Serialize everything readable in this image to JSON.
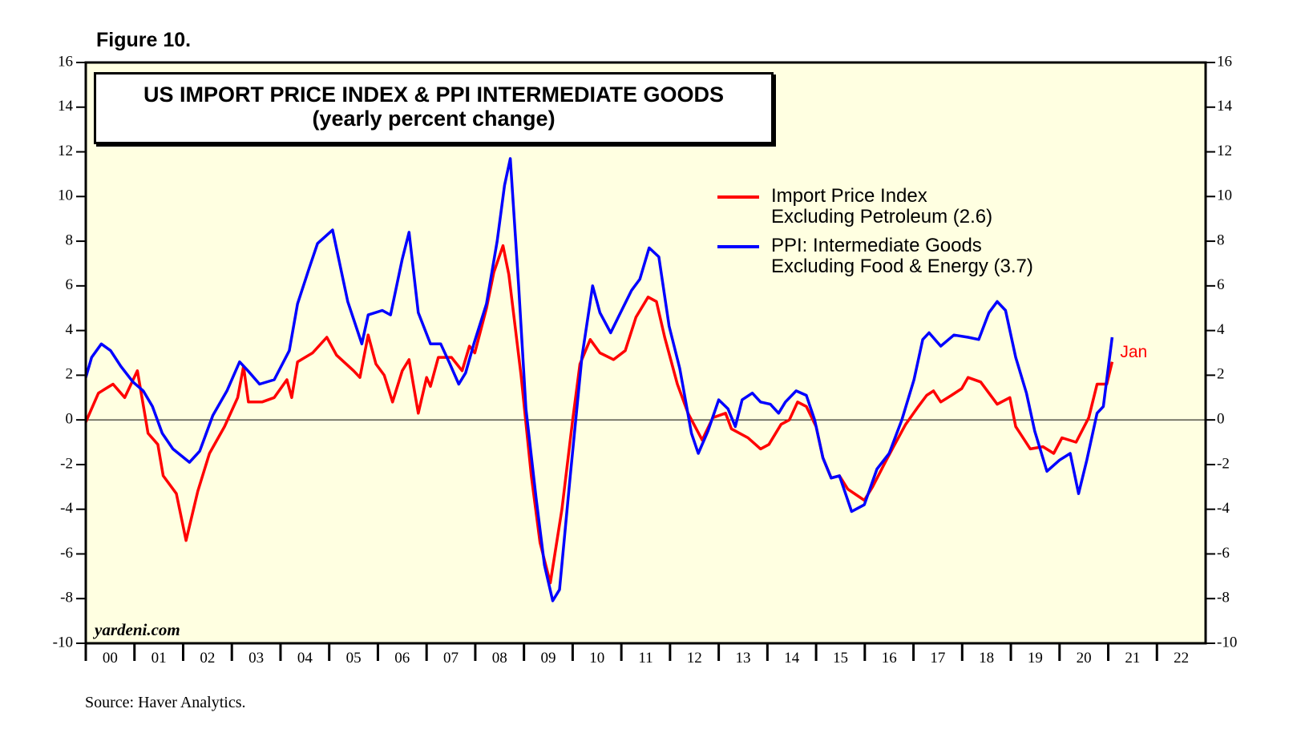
{
  "chart_data": {
    "type": "line",
    "figure_label": "Figure 10.",
    "title": "US IMPORT PRICE INDEX & PPI INTERMEDIATE GOODS",
    "subtitle": "(yearly percent change)",
    "source": "Source: Haver Analytics.",
    "watermark": "yardeni.com",
    "annotations": [
      "Jan"
    ],
    "xlim": [
      2000,
      2023
    ],
    "xticks": [
      {
        "value": 2000,
        "label": "00"
      },
      {
        "value": 2001,
        "label": "01"
      },
      {
        "value": 2002,
        "label": "02"
      },
      {
        "value": 2003,
        "label": "03"
      },
      {
        "value": 2004,
        "label": "04"
      },
      {
        "value": 2005,
        "label": "05"
      },
      {
        "value": 2006,
        "label": "06"
      },
      {
        "value": 2007,
        "label": "07"
      },
      {
        "value": 2008,
        "label": "08"
      },
      {
        "value": 2009,
        "label": "09"
      },
      {
        "value": 2010,
        "label": "10"
      },
      {
        "value": 2011,
        "label": "11"
      },
      {
        "value": 2012,
        "label": "12"
      },
      {
        "value": 2013,
        "label": "13"
      },
      {
        "value": 2014,
        "label": "14"
      },
      {
        "value": 2015,
        "label": "15"
      },
      {
        "value": 2016,
        "label": "16"
      },
      {
        "value": 2017,
        "label": "17"
      },
      {
        "value": 2018,
        "label": "18"
      },
      {
        "value": 2019,
        "label": "19"
      },
      {
        "value": 2020,
        "label": "20"
      },
      {
        "value": 2021,
        "label": "21"
      },
      {
        "value": 2022,
        "label": "22"
      }
    ],
    "ylim": [
      -10,
      16
    ],
    "yticks": [
      -10,
      -8,
      -6,
      -4,
      -2,
      0,
      2,
      4,
      6,
      8,
      10,
      12,
      14,
      16
    ],
    "series": [
      {
        "name": "Import Price Index\nExcluding Petroleum (2.6)",
        "color": "#ff0000",
        "x": [
          2000.0,
          2000.26,
          2000.56,
          2000.8,
          2001.06,
          2001.28,
          2001.48,
          2001.59,
          2001.86,
          2002.06,
          2002.3,
          2002.54,
          2002.85,
          2003.12,
          2003.24,
          2003.34,
          2003.62,
          2003.87,
          2004.13,
          2004.23,
          2004.35,
          2004.66,
          2004.95,
          2005.15,
          2005.5,
          2005.63,
          2005.8,
          2005.96,
          2006.13,
          2006.3,
          2006.5,
          2006.64,
          2006.83,
          2007.0,
          2007.08,
          2007.24,
          2007.51,
          2007.73,
          2007.88,
          2007.99,
          2008.23,
          2008.38,
          2008.57,
          2008.69,
          2008.94,
          2009.15,
          2009.33,
          2009.54,
          2009.78,
          2010.0,
          2010.15,
          2010.36,
          2010.56,
          2010.84,
          2011.08,
          2011.3,
          2011.55,
          2011.72,
          2011.89,
          2012.15,
          2012.37,
          2012.66,
          2012.88,
          2013.14,
          2013.26,
          2013.6,
          2013.86,
          2014.03,
          2014.28,
          2014.45,
          2014.62,
          2014.8,
          2015.0,
          2015.14,
          2015.31,
          2015.48,
          2015.65,
          2015.99,
          2016.16,
          2016.42,
          2016.59,
          2016.84,
          2017.1,
          2017.27,
          2017.41,
          2017.56,
          2017.78,
          2017.99,
          2018.12,
          2018.38,
          2018.55,
          2018.72,
          2018.98,
          2019.1,
          2019.4,
          2019.66,
          2019.88,
          2020.05,
          2020.34,
          2020.6,
          2020.77,
          2020.97,
          2021.08
        ],
        "values": [
          -0.1,
          1.2,
          1.6,
          1.0,
          2.2,
          -0.6,
          -1.1,
          -2.5,
          -3.3,
          -5.4,
          -3.2,
          -1.5,
          -0.3,
          1.0,
          2.4,
          0.8,
          0.8,
          1.0,
          1.8,
          1.0,
          2.6,
          3.0,
          3.7,
          2.9,
          2.2,
          1.9,
          3.8,
          2.5,
          2.0,
          0.8,
          2.2,
          2.7,
          0.3,
          1.9,
          1.5,
          2.8,
          2.8,
          2.2,
          3.3,
          3.0,
          5.0,
          6.6,
          7.8,
          6.5,
          2.0,
          -2.5,
          -5.5,
          -7.3,
          -4.0,
          0.0,
          2.5,
          3.6,
          3.0,
          2.7,
          3.1,
          4.6,
          5.5,
          5.3,
          3.7,
          1.6,
          0.3,
          -0.9,
          0.1,
          0.3,
          -0.4,
          -0.8,
          -1.3,
          -1.1,
          -0.2,
          0.0,
          0.8,
          0.6,
          -0.3,
          -1.7,
          -2.6,
          -2.5,
          -3.1,
          -3.6,
          -3.0,
          -1.9,
          -1.2,
          -0.2,
          0.6,
          1.1,
          1.3,
          0.8,
          1.1,
          1.4,
          1.9,
          1.7,
          1.2,
          0.7,
          1.0,
          -0.3,
          -1.3,
          -1.2,
          -1.5,
          -0.8,
          -1.0,
          0.1,
          1.6,
          1.6,
          2.6
        ]
      },
      {
        "name": "PPI: Intermediate Goods\nExcluding Food & Energy (3.7)",
        "color": "#0000ff",
        "x": [
          2000.0,
          2000.12,
          2000.32,
          2000.51,
          2000.72,
          2000.97,
          2001.18,
          2001.37,
          2001.57,
          2001.79,
          2002.13,
          2002.34,
          2002.61,
          2002.9,
          2003.16,
          2003.33,
          2003.57,
          2003.87,
          2004.18,
          2004.35,
          2004.59,
          2004.76,
          2005.07,
          2005.38,
          2005.67,
          2005.8,
          2006.09,
          2006.26,
          2006.5,
          2006.64,
          2006.83,
          2007.08,
          2007.29,
          2007.46,
          2007.66,
          2007.8,
          2007.97,
          2008.23,
          2008.45,
          2008.6,
          2008.72,
          2008.89,
          2009.04,
          2009.25,
          2009.42,
          2009.59,
          2009.73,
          2009.95,
          2010.19,
          2010.41,
          2010.56,
          2010.78,
          2010.96,
          2011.21,
          2011.38,
          2011.57,
          2011.77,
          2011.98,
          2012.2,
          2012.44,
          2012.58,
          2012.78,
          2013.0,
          2013.19,
          2013.34,
          2013.48,
          2013.69,
          2013.86,
          2014.06,
          2014.23,
          2014.37,
          2014.59,
          2014.8,
          2014.97,
          2015.14,
          2015.31,
          2015.48,
          2015.73,
          2015.99,
          2016.25,
          2016.5,
          2016.76,
          2017.01,
          2017.19,
          2017.32,
          2017.56,
          2017.83,
          2018.12,
          2018.34,
          2018.55,
          2018.72,
          2018.89,
          2019.1,
          2019.32,
          2019.49,
          2019.74,
          2020.0,
          2020.22,
          2020.39,
          2020.56,
          2020.77,
          2020.9,
          2021.08
        ],
        "values": [
          1.9,
          2.8,
          3.4,
          3.1,
          2.4,
          1.7,
          1.3,
          0.6,
          -0.6,
          -1.3,
          -1.9,
          -1.4,
          0.2,
          1.3,
          2.6,
          2.2,
          1.6,
          1.8,
          3.1,
          5.2,
          6.8,
          7.9,
          8.5,
          5.3,
          3.4,
          4.7,
          4.9,
          4.7,
          7.2,
          8.4,
          4.8,
          3.4,
          3.4,
          2.6,
          1.6,
          2.1,
          3.4,
          5.2,
          8.0,
          10.5,
          11.7,
          6.0,
          0.5,
          -3.5,
          -6.5,
          -8.1,
          -7.6,
          -2.5,
          2.8,
          6.0,
          4.8,
          3.9,
          4.7,
          5.8,
          6.3,
          7.7,
          7.3,
          4.2,
          2.3,
          -0.6,
          -1.5,
          -0.5,
          0.9,
          0.5,
          -0.3,
          0.9,
          1.2,
          0.8,
          0.7,
          0.3,
          0.8,
          1.3,
          1.1,
          0.0,
          -1.7,
          -2.6,
          -2.5,
          -4.1,
          -3.8,
          -2.2,
          -1.5,
          0.0,
          1.8,
          3.6,
          3.9,
          3.3,
          3.8,
          3.7,
          3.6,
          4.8,
          5.3,
          4.9,
          2.8,
          1.2,
          -0.5,
          -2.3,
          -1.8,
          -1.5,
          -3.3,
          -1.8,
          0.3,
          0.6,
          3.7
        ]
      }
    ]
  }
}
